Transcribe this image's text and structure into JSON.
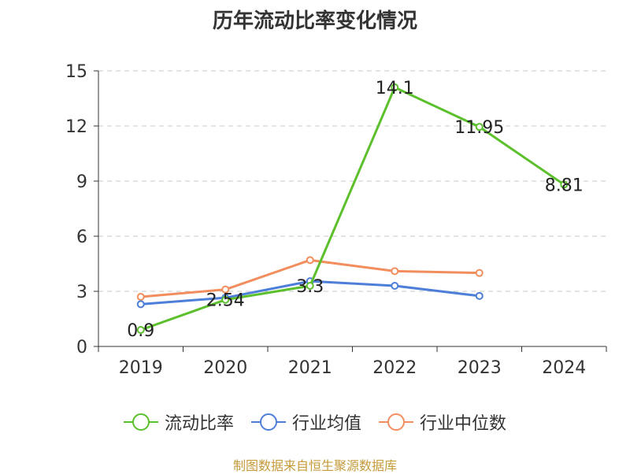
{
  "chart_data": {
    "type": "line",
    "title": "历年流动比率变化情况",
    "categories": [
      "2019",
      "2020",
      "2021",
      "2022",
      "2023",
      "2024"
    ],
    "ylim": [
      0,
      15
    ],
    "yticks": [
      0,
      3,
      6,
      9,
      12,
      15
    ],
    "grid": true,
    "legend_position": "bottom",
    "series": [
      {
        "name": "流动比率",
        "color": "#5cc02d",
        "values": [
          0.9,
          2.54,
          3.3,
          14.1,
          11.95,
          8.81
        ],
        "labels": [
          "0.9",
          "2.54",
          "3.3",
          "14.1",
          "11.95",
          "8.81"
        ]
      },
      {
        "name": "行业均值",
        "color": "#4e7fd8",
        "values": [
          2.3,
          2.65,
          3.55,
          3.3,
          2.75,
          null
        ]
      },
      {
        "name": "行业中位数",
        "color": "#f28e5e",
        "values": [
          2.7,
          3.1,
          4.7,
          4.1,
          4.0,
          null
        ]
      }
    ]
  },
  "source": "制图数据来自恒生聚源数据库"
}
